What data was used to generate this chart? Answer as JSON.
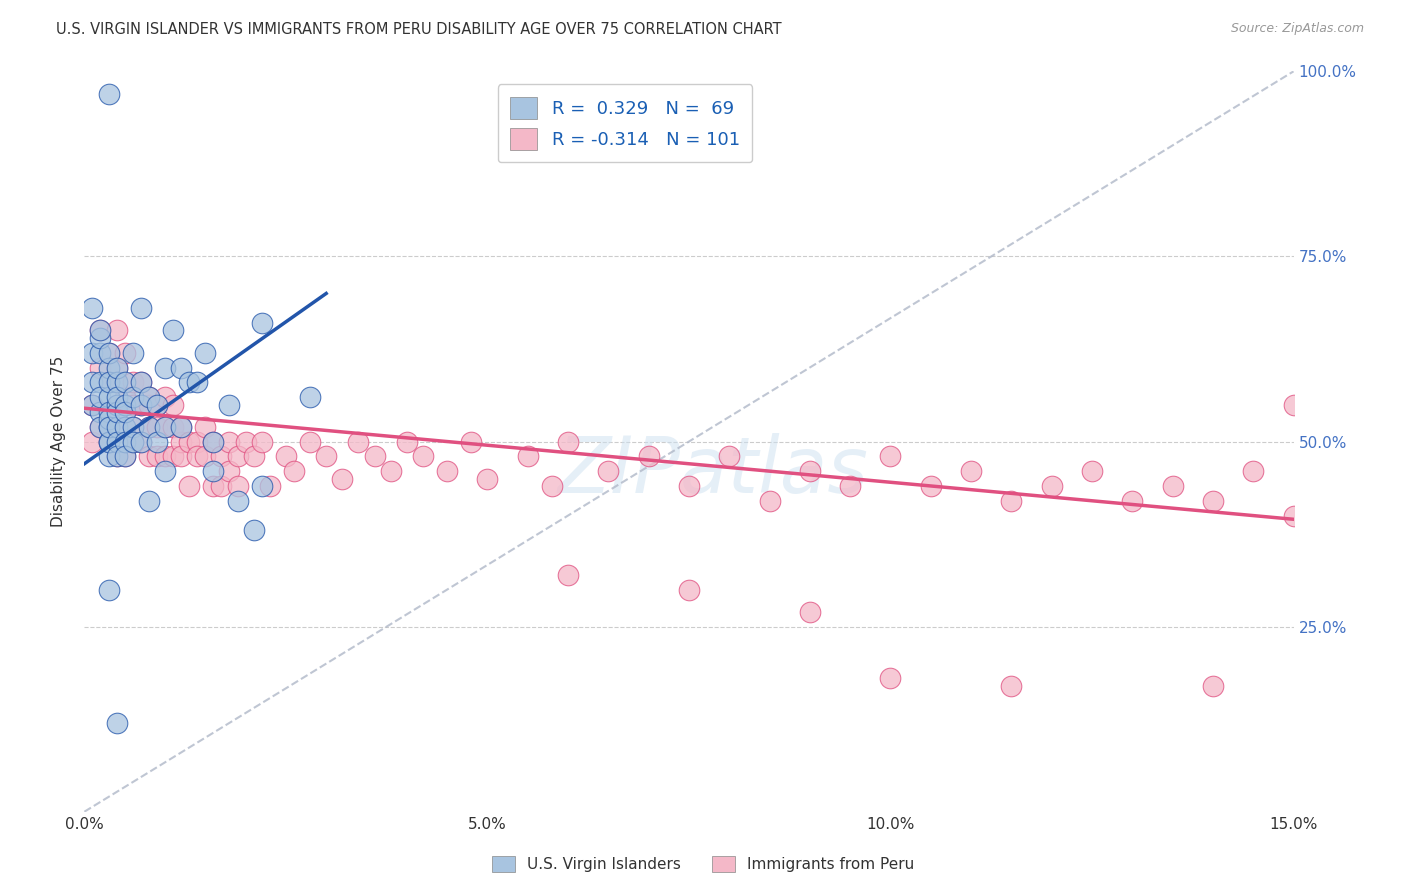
{
  "title": "U.S. VIRGIN ISLANDER VS IMMIGRANTS FROM PERU DISABILITY AGE OVER 75 CORRELATION CHART",
  "source": "Source: ZipAtlas.com",
  "ylabel": "Disability Age Over 75",
  "xmin": 0.0,
  "xmax": 0.15,
  "ymin": 0.0,
  "ymax": 1.0,
  "xticks": [
    0.0,
    0.05,
    0.1,
    0.15
  ],
  "xtick_labels": [
    "0.0%",
    "5.0%",
    "10.0%",
    "15.0%"
  ],
  "yticks": [
    0.0,
    0.25,
    0.5,
    0.75,
    1.0
  ],
  "ytick_labels": [
    "",
    "25.0%",
    "50.0%",
    "75.0%",
    "100.0%"
  ],
  "blue_R": 0.329,
  "blue_N": 69,
  "pink_R": -0.314,
  "pink_N": 101,
  "blue_color": "#a8c4e0",
  "pink_color": "#f4b8c8",
  "blue_line_color": "#2255aa",
  "pink_line_color": "#e05080",
  "legend_label_blue": "U.S. Virgin Islanders",
  "legend_label_pink": "Immigrants from Peru",
  "watermark": "ZIPatlas",
  "blue_scatter_x": [
    0.003,
    0.001,
    0.001,
    0.001,
    0.001,
    0.002,
    0.002,
    0.002,
    0.002,
    0.002,
    0.002,
    0.002,
    0.003,
    0.003,
    0.003,
    0.003,
    0.003,
    0.003,
    0.003,
    0.003,
    0.003,
    0.003,
    0.003,
    0.004,
    0.004,
    0.004,
    0.004,
    0.004,
    0.004,
    0.004,
    0.004,
    0.005,
    0.005,
    0.005,
    0.005,
    0.005,
    0.005,
    0.006,
    0.006,
    0.006,
    0.006,
    0.007,
    0.007,
    0.007,
    0.007,
    0.008,
    0.008,
    0.009,
    0.009,
    0.01,
    0.01,
    0.011,
    0.012,
    0.013,
    0.015,
    0.016,
    0.018,
    0.019,
    0.021,
    0.022,
    0.008,
    0.01,
    0.012,
    0.014,
    0.016,
    0.022,
    0.028,
    0.004,
    0.003
  ],
  "blue_scatter_y": [
    0.97,
    0.62,
    0.58,
    0.68,
    0.55,
    0.62,
    0.58,
    0.54,
    0.64,
    0.52,
    0.65,
    0.56,
    0.52,
    0.5,
    0.56,
    0.54,
    0.6,
    0.48,
    0.53,
    0.5,
    0.52,
    0.58,
    0.62,
    0.55,
    0.52,
    0.58,
    0.54,
    0.5,
    0.56,
    0.6,
    0.48,
    0.52,
    0.55,
    0.5,
    0.58,
    0.48,
    0.54,
    0.56,
    0.52,
    0.5,
    0.62,
    0.68,
    0.55,
    0.5,
    0.58,
    0.52,
    0.56,
    0.55,
    0.5,
    0.52,
    0.6,
    0.65,
    0.6,
    0.58,
    0.62,
    0.5,
    0.55,
    0.42,
    0.38,
    0.44,
    0.42,
    0.46,
    0.52,
    0.58,
    0.46,
    0.66,
    0.56,
    0.12,
    0.3
  ],
  "pink_scatter_x": [
    0.001,
    0.001,
    0.002,
    0.002,
    0.002,
    0.003,
    0.003,
    0.003,
    0.003,
    0.004,
    0.004,
    0.004,
    0.004,
    0.004,
    0.005,
    0.005,
    0.005,
    0.005,
    0.005,
    0.006,
    0.006,
    0.006,
    0.006,
    0.007,
    0.007,
    0.007,
    0.008,
    0.008,
    0.008,
    0.008,
    0.009,
    0.009,
    0.009,
    0.01,
    0.01,
    0.01,
    0.011,
    0.011,
    0.011,
    0.012,
    0.012,
    0.012,
    0.013,
    0.013,
    0.014,
    0.014,
    0.015,
    0.015,
    0.016,
    0.016,
    0.017,
    0.017,
    0.018,
    0.018,
    0.019,
    0.019,
    0.02,
    0.021,
    0.022,
    0.023,
    0.025,
    0.026,
    0.028,
    0.03,
    0.032,
    0.034,
    0.036,
    0.038,
    0.04,
    0.042,
    0.045,
    0.048,
    0.05,
    0.055,
    0.058,
    0.06,
    0.065,
    0.07,
    0.075,
    0.08,
    0.085,
    0.09,
    0.095,
    0.1,
    0.105,
    0.11,
    0.115,
    0.12,
    0.125,
    0.13,
    0.135,
    0.14,
    0.145,
    0.15,
    0.06,
    0.075,
    0.09,
    0.1,
    0.115,
    0.14,
    0.15
  ],
  "pink_scatter_y": [
    0.55,
    0.5,
    0.65,
    0.6,
    0.52,
    0.58,
    0.62,
    0.52,
    0.5,
    0.65,
    0.58,
    0.55,
    0.48,
    0.6,
    0.62,
    0.55,
    0.52,
    0.48,
    0.56,
    0.55,
    0.58,
    0.5,
    0.52,
    0.55,
    0.5,
    0.58,
    0.52,
    0.55,
    0.48,
    0.56,
    0.52,
    0.55,
    0.48,
    0.52,
    0.56,
    0.48,
    0.52,
    0.48,
    0.55,
    0.5,
    0.48,
    0.52,
    0.5,
    0.44,
    0.5,
    0.48,
    0.52,
    0.48,
    0.5,
    0.44,
    0.48,
    0.44,
    0.5,
    0.46,
    0.48,
    0.44,
    0.5,
    0.48,
    0.5,
    0.44,
    0.48,
    0.46,
    0.5,
    0.48,
    0.45,
    0.5,
    0.48,
    0.46,
    0.5,
    0.48,
    0.46,
    0.5,
    0.45,
    0.48,
    0.44,
    0.5,
    0.46,
    0.48,
    0.44,
    0.48,
    0.42,
    0.46,
    0.44,
    0.48,
    0.44,
    0.46,
    0.42,
    0.44,
    0.46,
    0.42,
    0.44,
    0.42,
    0.46,
    0.55,
    0.32,
    0.3,
    0.27,
    0.18,
    0.17,
    0.17,
    0.4
  ],
  "blue_trend_x0": 0.0,
  "blue_trend_y0": 0.47,
  "blue_trend_x1": 0.03,
  "blue_trend_y1": 0.7,
  "pink_trend_x0": 0.0,
  "pink_trend_y0": 0.545,
  "pink_trend_x1": 0.15,
  "pink_trend_y1": 0.395
}
